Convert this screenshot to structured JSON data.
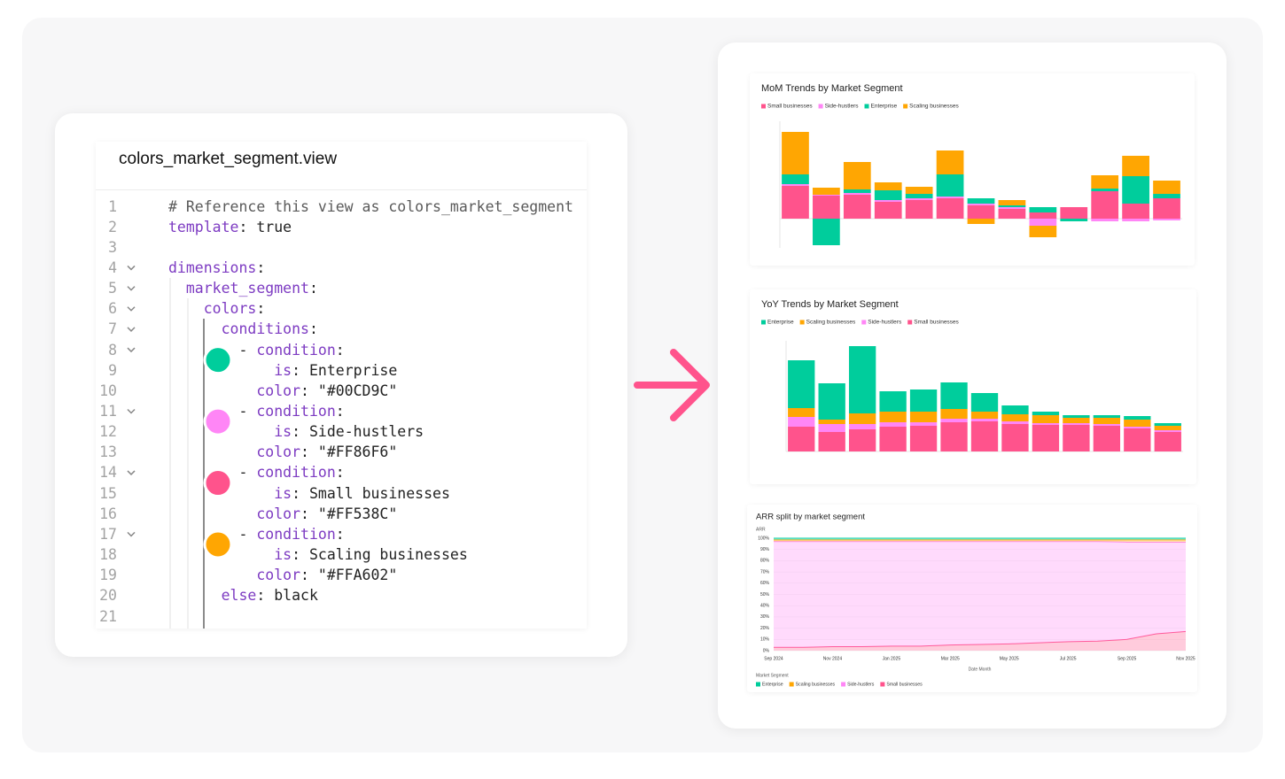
{
  "editor": {
    "title": "colors_market_segment.view",
    "line_numbers": [
      1,
      2,
      3,
      4,
      5,
      6,
      7,
      8,
      9,
      10,
      11,
      12,
      13,
      14,
      15,
      16,
      17,
      18,
      19,
      20,
      21
    ],
    "lines": [
      "# Reference this view as colors_market_segment",
      "template: true",
      "",
      "dimensions:",
      "  market_segment:",
      "    colors:",
      "      conditions:",
      "        - condition:",
      "            is: Enterprise",
      "          color: \"#00CD9C\"",
      "        - condition:",
      "            is: Side-hustlers",
      "          color: \"#FF86F6\"",
      "        - condition:",
      "            is: Small businesses",
      "          color: \"#FF538C\"",
      "        - condition:",
      "            is: Scaling businesses",
      "          color: \"#FFA602\"",
      "      else: black",
      ""
    ]
  },
  "chart_data": [
    {
      "type": "bar",
      "stacked": true,
      "title": "MoM Trends by Market Segment",
      "categories": [
        null,
        null,
        null,
        null,
        null,
        null,
        null,
        null,
        null,
        null,
        null,
        null,
        null
      ],
      "series": [
        {
          "name": "Small businesses",
          "color": "#FF538C",
          "values": [
            3.7,
            2.6,
            2.7,
            1.9,
            2.1,
            2.3,
            1.5,
            1.1,
            0.7,
            1.3,
            3.1,
            1.7,
            2.3
          ]
        },
        {
          "name": "Side-hustlers",
          "color": "#FF86F6",
          "values": [
            0.2,
            0.1,
            0.2,
            0.2,
            0.2,
            0.2,
            0.2,
            0.2,
            -0.8,
            0,
            -0.3,
            -0.3,
            -0.2
          ]
        },
        {
          "name": "Enterprise",
          "color": "#00CD9C",
          "values": [
            1.1,
            -3.0,
            0.4,
            1.1,
            0.5,
            2.5,
            0.6,
            0.2,
            0.6,
            -0.3,
            0.3,
            3.1,
            0.5
          ]
        },
        {
          "name": "Scaling businesses",
          "color": "#FFA602",
          "values": [
            4.8,
            0.8,
            3.1,
            0.9,
            0.8,
            2.7,
            -0.6,
            0.6,
            -1.3,
            0,
            1.5,
            2.3,
            1.5
          ]
        }
      ],
      "ylim": [
        -3.3,
        11
      ]
    },
    {
      "type": "bar",
      "stacked": true,
      "title": "YoY Trends by Market Segment",
      "legend_order": "reversed",
      "categories": [
        null,
        null,
        null,
        null,
        null,
        null,
        null,
        null,
        null,
        null,
        null,
        null,
        null
      ],
      "series": [
        {
          "name": "Small businesses",
          "color": "#FF538C",
          "values": [
            2.8,
            2.2,
            2.5,
            2.8,
            2.9,
            3.3,
            3.4,
            3.1,
            3.0,
            3.0,
            2.9,
            2.6,
            2.2
          ]
        },
        {
          "name": "Side-hustlers",
          "color": "#FF86F6",
          "values": [
            1.1,
            0.9,
            0.6,
            0.5,
            0.4,
            0.4,
            0.3,
            0.3,
            0.2,
            0.2,
            0.2,
            0.2,
            0.2
          ]
        },
        {
          "name": "Scaling businesses",
          "color": "#FFA602",
          "values": [
            1.0,
            0.5,
            1.2,
            1.2,
            1.2,
            1.1,
            0.8,
            0.8,
            0.9,
            0.6,
            0.7,
            0.8,
            0.5
          ]
        },
        {
          "name": "Enterprise",
          "color": "#00CD9C",
          "values": [
            5.4,
            4.1,
            7.6,
            2.3,
            2.5,
            3.0,
            2.1,
            1.0,
            0.4,
            0.3,
            0.3,
            0.4,
            0.3
          ]
        }
      ],
      "ylim": [
        0,
        12.5
      ]
    },
    {
      "type": "area",
      "stacked": true,
      "title": "ARR split by market segment",
      "ylabel": "ARR",
      "xlabel": "Date Month",
      "legend_title": "Market Segment",
      "legend_order": "reversed",
      "categories": [
        "Sep 2024",
        null,
        "Nov 2024",
        null,
        "Jan 2025",
        null,
        "Mar 2025",
        null,
        "May 2025",
        null,
        "Jul 2025",
        null,
        "Sep 2025",
        null,
        "Nov 2025"
      ],
      "series": [
        {
          "name": "Small businesses",
          "color": "#FF538C",
          "values": [
            3,
            3,
            3.5,
            3.5,
            4,
            4,
            5,
            5.5,
            6,
            7,
            8,
            8.5,
            10,
            15,
            17
          ]
        },
        {
          "name": "Side-hustlers",
          "color": "#FF86F6",
          "values": [
            94,
            94,
            93.5,
            93.5,
            93,
            93,
            92,
            91.5,
            91,
            90,
            89,
            88.5,
            86.5,
            81.5,
            79.5
          ]
        },
        {
          "name": "Scaling businesses",
          "color": "#FFA602",
          "values": [
            1.5,
            1.5,
            1.5,
            1.5,
            1.5,
            1.5,
            1.5,
            1.5,
            1.5,
            1.5,
            1.5,
            1.5,
            2,
            2,
            2
          ]
        },
        {
          "name": "Enterprise",
          "color": "#00CD9C",
          "values": [
            1.5,
            1.5,
            1.5,
            1.5,
            1.5,
            1.5,
            1.5,
            1.5,
            1.5,
            1.5,
            1.5,
            1.5,
            1.5,
            1.5,
            1.5
          ]
        }
      ],
      "ylim": [
        0,
        100
      ],
      "yticks": [
        {
          "value": 0,
          "label": "0%"
        },
        {
          "value": 10,
          "label": "10%"
        },
        {
          "value": 20,
          "label": "20%"
        },
        {
          "value": 30,
          "label": "30%"
        },
        {
          "value": 40,
          "label": "40%"
        },
        {
          "value": 50,
          "label": "50%"
        },
        {
          "value": 60,
          "label": "60%"
        },
        {
          "value": 70,
          "label": "70%"
        },
        {
          "value": 80,
          "label": "80%"
        },
        {
          "value": 90,
          "label": "90%"
        },
        {
          "value": 100,
          "label": "100%"
        }
      ],
      "grid": true
    }
  ]
}
